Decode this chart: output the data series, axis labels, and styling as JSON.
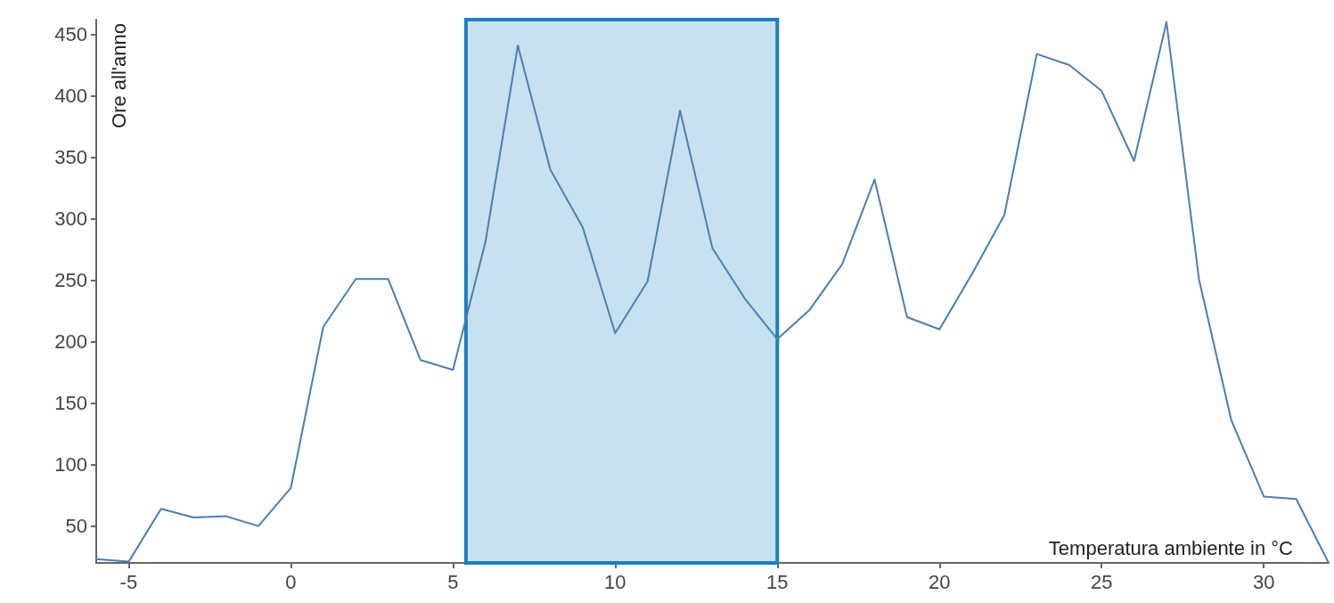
{
  "chart_data": {
    "type": "line",
    "xlabel": "Temperatura ambiente in °C",
    "ylabel": "Ore all'anno",
    "x": [
      -6,
      -5,
      -4,
      -3,
      -2,
      -1,
      0,
      1,
      2,
      3,
      4,
      5,
      6,
      7,
      8,
      9,
      10,
      11,
      12,
      13,
      14,
      15,
      16,
      17,
      18,
      19,
      20,
      21,
      22,
      23,
      24,
      25,
      26,
      27,
      28,
      29,
      30,
      31,
      32
    ],
    "series": [
      {
        "color": "#4a7fb0",
        "values": [
          23,
          21,
          64,
          57,
          58,
          50,
          81,
          212,
          251,
          251,
          185,
          177,
          281,
          441,
          340,
          293,
          207,
          249,
          388,
          276,
          235,
          202,
          226,
          263,
          332,
          220,
          210,
          255,
          303,
          434,
          425,
          404,
          347,
          460,
          251,
          136,
          74,
          72,
          20
        ]
      }
    ],
    "xlim": [
      -6,
      32
    ],
    "xticks": [
      -5,
      0,
      5,
      10,
      15,
      20,
      25,
      30
    ],
    "ylim": [
      20,
      462
    ],
    "yticks": [
      50,
      100,
      150,
      200,
      250,
      300,
      350,
      400,
      450
    ],
    "bands": [
      {
        "axis": "x",
        "from": 5.4,
        "to": 15,
        "color": "#c8e1f0"
      }
    ],
    "grid": false,
    "marker": "none",
    "line_style": "solid"
  }
}
